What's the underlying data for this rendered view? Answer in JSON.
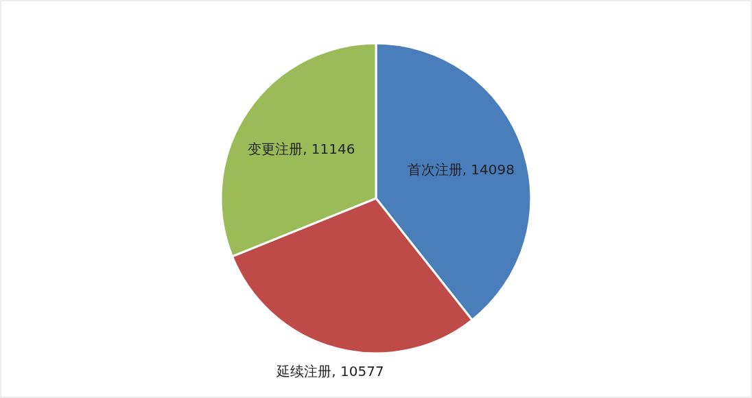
{
  "chart_data": {
    "type": "pie",
    "categories": [
      "首次注册",
      "延续注册",
      "变更注册"
    ],
    "values": [
      14098,
      10577,
      11146
    ],
    "value_labels": [
      ", 14098",
      ", 10577",
      ", 11146"
    ],
    "colors": [
      "#4a7ebb",
      "#be4b48",
      "#9bbb59"
    ]
  }
}
